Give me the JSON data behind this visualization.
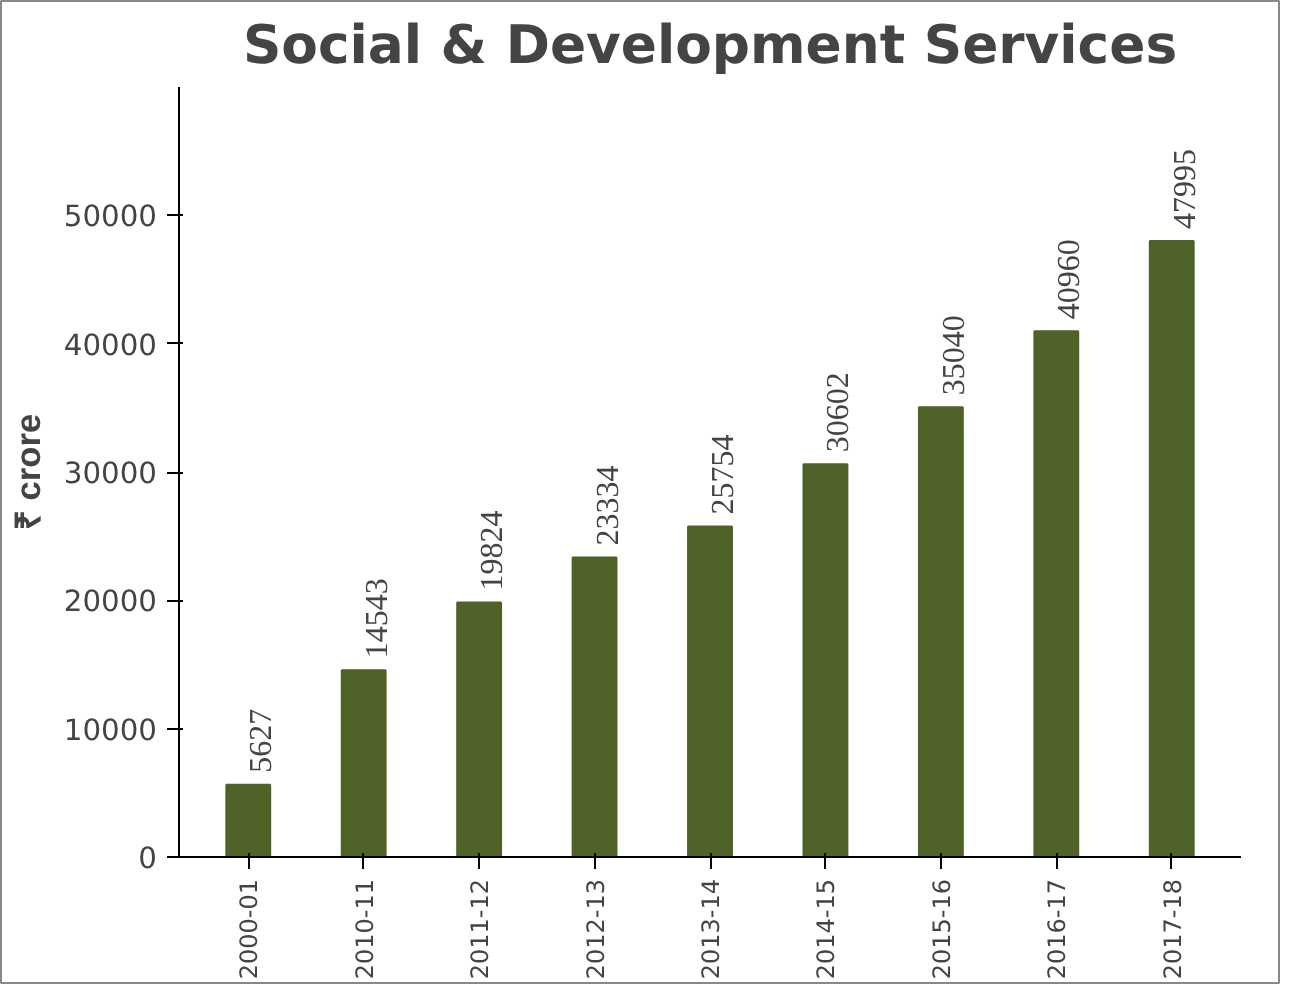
{
  "chart_data": {
    "type": "bar",
    "title": "Social & Development Services",
    "ylabel": "₹ crore",
    "categories": [
      "2000-01",
      "2010-11",
      "2011-12",
      "2012-13",
      "2013-14",
      "2014-15",
      "2015-16",
      "2016-17",
      "2017-18"
    ],
    "values": [
      5627,
      14543,
      19824,
      23334,
      25754,
      30602,
      35040,
      40960,
      47995
    ],
    "color": "#4f6228",
    "ylim": [
      0,
      60000
    ],
    "yticks": [
      0,
      10000,
      20000,
      30000,
      40000,
      50000
    ],
    "data_labels": true,
    "grid": false
  }
}
